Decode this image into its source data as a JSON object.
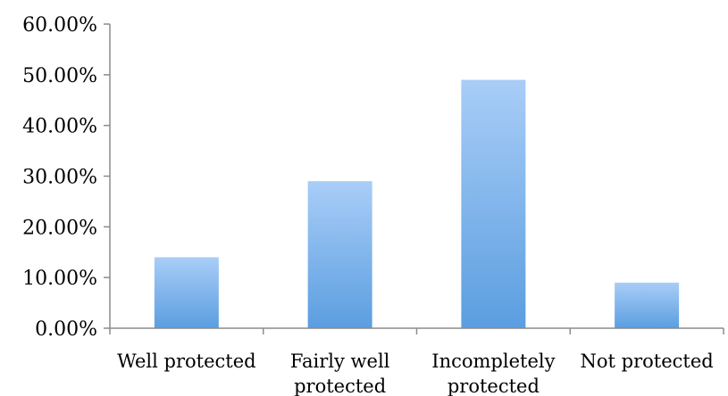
{
  "chart_data": {
    "type": "bar",
    "categories": [
      "Well protected",
      "Fairly well protected",
      "Incompletely protected",
      "Not protected"
    ],
    "category_lines": [
      [
        "Well protected"
      ],
      [
        "Fairly well",
        "protected"
      ],
      [
        "Incompletely",
        "protected"
      ],
      [
        "Not protected"
      ]
    ],
    "values": [
      0.14,
      0.29,
      0.49,
      0.09
    ],
    "ylim": [
      0,
      0.6
    ],
    "yticks": [
      0,
      0.1,
      0.2,
      0.3,
      0.4,
      0.5,
      0.6
    ],
    "ytick_labels": [
      "0.00%",
      "10.00%",
      "20.00%",
      "30.00%",
      "40.00%",
      "50.00%",
      "60.00%"
    ],
    "grid": false,
    "legend": "none",
    "colors": {
      "bar_top": "#a9cdf7",
      "bar_bottom": "#5b9ee0",
      "axis": "#8c8c8c"
    }
  }
}
